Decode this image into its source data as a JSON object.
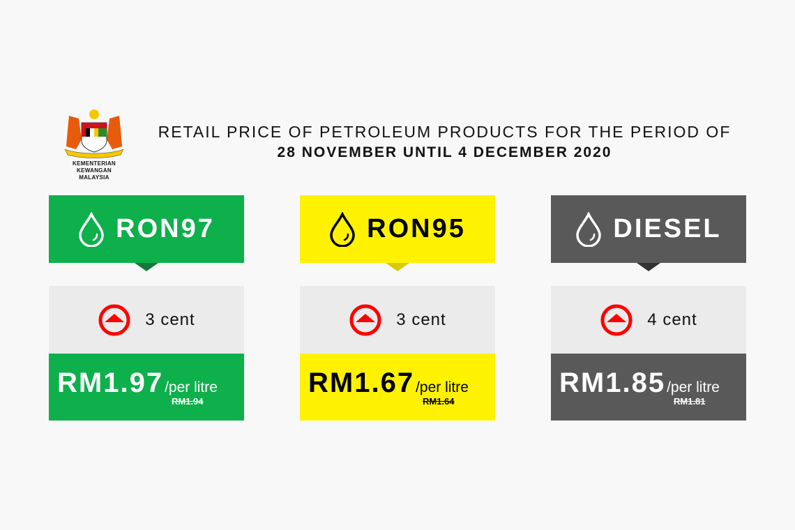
{
  "logo": {
    "line1": "KEMENTERIAN KEWANGAN",
    "line2": "MALAYSIA"
  },
  "title": {
    "line1": "RETAIL PRICE OF PETROLEUM PRODUCTS FOR THE PERIOD OF",
    "line2": "28 NOVEMBER UNTIL 4 DECEMBER 2020"
  },
  "products": [
    {
      "name": "RON97",
      "change": "3 cent",
      "direction": "up",
      "price": "RM1.97",
      "unit": "/per litre",
      "old_price": "RM1.94",
      "color": "#0db04b",
      "arrow_color": "#137a3a",
      "text_color": "#ffffff"
    },
    {
      "name": "RON95",
      "change": "3 cent",
      "direction": "up",
      "price": "RM1.67",
      "unit": "/per litre",
      "old_price": "RM1.64",
      "color": "#fff200",
      "arrow_color": "#d4cc0a",
      "text_color": "#000000"
    },
    {
      "name": "DIESEL",
      "change": "4 cent",
      "direction": "up",
      "price": "RM1.85",
      "unit": "/per litre",
      "old_price": "RM1.81",
      "color": "#595959",
      "arrow_color": "#333333",
      "text_color": "#ffffff"
    }
  ],
  "icons": {
    "fuel": "droplet-icon",
    "change": "arrow-up-circle-icon"
  }
}
